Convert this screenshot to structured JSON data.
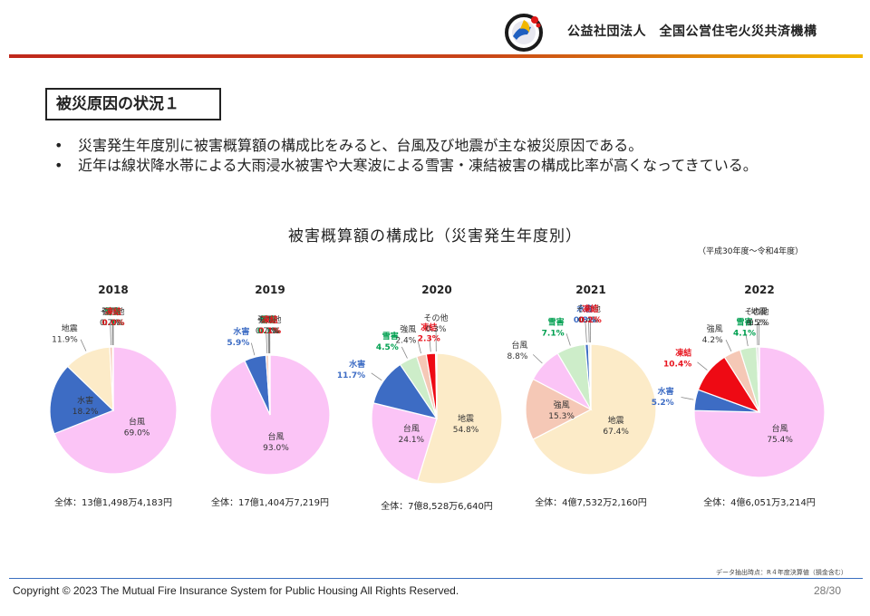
{
  "header": {
    "organization": "公益社団法人　全国公営住宅火災共済機構"
  },
  "slide": {
    "title": "被災原因の状況１",
    "bullets": [
      "災害発生年度別に被害概算額の構成比をみると、台風及び地震が主な被災原因である。",
      "近年は線状降水帯による大雨浸水被害や大寒波による雪害・凍結被害の構成比率が高くなってきている。"
    ],
    "bullet_mark": "•"
  },
  "chart_header": {
    "title": "被害概算額の構成比（災害発生年度別）",
    "period": "（平成30年度～令和4年度）"
  },
  "colors": {
    "台風": "#fbc4f6",
    "水害": "#3d6cc4",
    "地震": "#fcebc8",
    "強風": "#f5c8b6",
    "雪害": "#cdedc9",
    "凍結": "#ee0a14",
    "その他": "#d0d0d0",
    "label_water": "#3d6cc4",
    "label_snow": "#00a050",
    "label_freeze": "#e8141e"
  },
  "chart_data": [
    {
      "type": "pie",
      "title": "2018",
      "total": "全体：13億1,498万4,183円",
      "slices": [
        {
          "name": "台風",
          "value": 69.0,
          "label": "69.0%"
        },
        {
          "name": "水害",
          "value": 18.2,
          "label": "18.2%"
        },
        {
          "name": "地震",
          "value": 11.9,
          "label": "11.9%"
        },
        {
          "name": "強風",
          "value": 0.7,
          "label": "0.7%"
        },
        {
          "name": "その他",
          "value": 0.1,
          "label": "0.1%"
        },
        {
          "name": "雪害",
          "value": 0.1,
          "label": "0.1%"
        },
        {
          "name": "凍結",
          "value": 0.0,
          "label": "0.0%"
        }
      ]
    },
    {
      "type": "pie",
      "title": "2019",
      "total": "全体：17億1,404万7,219円",
      "slices": [
        {
          "name": "台風",
          "value": 93.0,
          "label": "93.0%"
        },
        {
          "name": "水害",
          "value": 5.9,
          "label": "5.9%"
        },
        {
          "name": "強風",
          "value": 0.7,
          "label": "0.7%"
        },
        {
          "name": "地震",
          "value": 0.1,
          "label": "0.1%"
        },
        {
          "name": "雪害",
          "value": 0.1,
          "label": "0.1%"
        },
        {
          "name": "その他",
          "value": 0.1,
          "label": "0.1%"
        },
        {
          "name": "凍結",
          "value": 0.1,
          "label": "0.1%"
        }
      ]
    },
    {
      "type": "pie",
      "title": "2020",
      "total": "全体：7億8,528万6,640円",
      "slices": [
        {
          "name": "地震",
          "value": 54.8,
          "label": "54.8%"
        },
        {
          "name": "台風",
          "value": 24.1,
          "label": "24.1%"
        },
        {
          "name": "水害",
          "value": 11.7,
          "label": "11.7%"
        },
        {
          "name": "雪害",
          "value": 4.5,
          "label": "4.5%"
        },
        {
          "name": "強風",
          "value": 2.4,
          "label": "2.4%"
        },
        {
          "name": "凍結",
          "value": 2.3,
          "label": "2.3%"
        },
        {
          "name": "その他",
          "value": 0.3,
          "label": "0.3%"
        }
      ]
    },
    {
      "type": "pie",
      "title": "2021",
      "total": "全体：4億7,532万2,160円",
      "slices": [
        {
          "name": "地震",
          "value": 67.4,
          "label": "67.4%"
        },
        {
          "name": "強風",
          "value": 15.3,
          "label": "15.3%"
        },
        {
          "name": "台風",
          "value": 8.8,
          "label": "8.8%"
        },
        {
          "name": "雪害",
          "value": 7.1,
          "label": "7.1%"
        },
        {
          "name": "水害",
          "value": 0.8,
          "label": "0.8%"
        },
        {
          "name": "その他",
          "value": 0.4,
          "label": "0.4%"
        },
        {
          "name": "凍結",
          "value": 0.2,
          "label": "0.2%"
        }
      ]
    },
    {
      "type": "pie",
      "title": "2022",
      "total": "全体：4億6,051万3,214円",
      "slices": [
        {
          "name": "台風",
          "value": 75.4,
          "label": "75.4%"
        },
        {
          "name": "水害",
          "value": 5.2,
          "label": "5.2%"
        },
        {
          "name": "凍結",
          "value": 10.4,
          "label": "10.4%"
        },
        {
          "name": "強風",
          "value": 4.2,
          "label": "4.2%"
        },
        {
          "name": "雪害",
          "value": 4.1,
          "label": "4.1%"
        },
        {
          "name": "その他",
          "value": 0.5,
          "label": "0.5%"
        },
        {
          "name": "地震",
          "value": 0.2,
          "label": "0.2%"
        }
      ]
    }
  ],
  "source_note": "データ抽出時点：R４年度決算値（損金含む）",
  "footer": {
    "copyright": "Copyright © 2023 The Mutual Fire Insurance System for Public Housing  All Rights Reserved.",
    "page": "28/30"
  }
}
